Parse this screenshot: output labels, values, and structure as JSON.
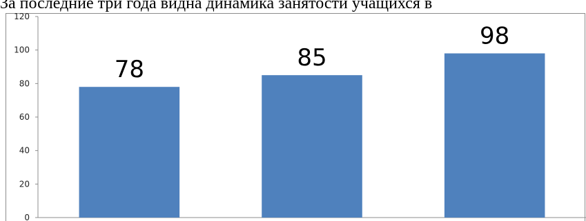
{
  "header": {
    "text": "За последние три года видна динамика занятости учащихся в"
  },
  "chart_data": {
    "type": "bar",
    "categories": [
      "",
      "",
      ""
    ],
    "values": [
      78,
      85,
      98
    ],
    "data_labels": [
      "78",
      "85",
      "98"
    ],
    "ylim": [
      0,
      120
    ],
    "yticks": [
      0,
      20,
      40,
      60,
      80,
      100,
      120
    ],
    "grid": false,
    "legend": "none",
    "bar_color": "#4f81bd"
  }
}
